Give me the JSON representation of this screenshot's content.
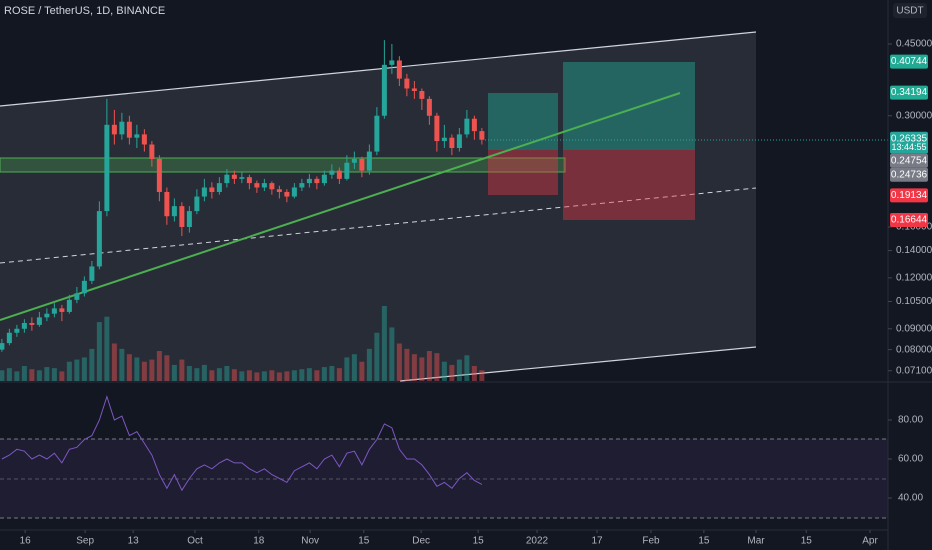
{
  "chart_data": {
    "type": "candlestick",
    "title": "ROSE / TetherUS, 1D, BINANCE",
    "currency": "USDT",
    "log_scale": true,
    "ylim": [
      0.067,
      0.577
    ],
    "yticks": [
      {
        "value": 0.45,
        "label": "0.45000"
      },
      {
        "value": 0.3,
        "label": "0.30000"
      },
      {
        "value": 0.16,
        "label": "0.16000"
      },
      {
        "value": 0.14,
        "label": "0.14000"
      },
      {
        "value": 0.12,
        "label": "0.12000"
      },
      {
        "value": 0.105,
        "label": "0.10500"
      },
      {
        "value": 0.09,
        "label": "0.09000"
      },
      {
        "value": 0.08,
        "label": "0.08000"
      },
      {
        "value": 0.071,
        "label": "0.07100"
      }
    ],
    "price_tags": [
      {
        "value": 0.40744,
        "color": "#22ab94"
      },
      {
        "value": 0.34194,
        "color": "#22ab94"
      },
      {
        "value": 0.26335,
        "color": "#26a69a"
      },
      {
        "value": 0.24754,
        "color": "#787b86"
      },
      {
        "value": 0.24736,
        "color": "#787b86"
      },
      {
        "value": 0.19134,
        "color": "#f23645"
      },
      {
        "value": 0.16644,
        "color": "#f23645"
      }
    ],
    "countdown": "13:44:55",
    "xlim": [
      0,
      236.8
    ],
    "xticks": [
      {
        "value": 6.7,
        "label": "16"
      },
      {
        "value": 22.7,
        "label": "Sep"
      },
      {
        "value": 35.5,
        "label": "13"
      },
      {
        "value": 52,
        "label": "Oct"
      },
      {
        "value": 69,
        "label": "18"
      },
      {
        "value": 82.7,
        "label": "Nov"
      },
      {
        "value": 97,
        "label": "15"
      },
      {
        "value": 112.3,
        "label": "Dec"
      },
      {
        "value": 127.5,
        "label": "15"
      },
      {
        "value": 143.2,
        "label": "2022"
      },
      {
        "value": 159.2,
        "label": "17"
      },
      {
        "value": 173.6,
        "label": "Feb"
      },
      {
        "value": 187.7,
        "label": "15"
      },
      {
        "value": 201.6,
        "label": "Mar"
      },
      {
        "value": 215,
        "label": "15"
      },
      {
        "value": 232,
        "label": "Apr"
      }
    ],
    "x": [
      0.5,
      2.5,
      4.5,
      6.5,
      8.5,
      10.5,
      12.5,
      14.5,
      16.5,
      18.5,
      20.5,
      22.5,
      24.5,
      26.5,
      28.5,
      30.5,
      32.5,
      34.5,
      36.5,
      38.5,
      40.5,
      42.5,
      44.5,
      46.5,
      48.5,
      50.5,
      52.5,
      54.5,
      56.5,
      58.5,
      60.5,
      62.5,
      64.5,
      66.5,
      68.5,
      70.5,
      72.5,
      74.5,
      76.5,
      78.5,
      80.5,
      82.5,
      84.5,
      86.5,
      88.5,
      90.5,
      92.5,
      94.5,
      96.5,
      98.5,
      100.5,
      102.5,
      104.5,
      106.5,
      108.5,
      110.5,
      112.5,
      114.5,
      116.5,
      118.5,
      120.5,
      122.5,
      124.5,
      126.5,
      128.5
    ],
    "candles": [
      [
        0.08,
        0.085,
        0.079,
        0.083
      ],
      [
        0.083,
        0.09,
        0.082,
        0.088
      ],
      [
        0.088,
        0.092,
        0.086,
        0.09
      ],
      [
        0.09,
        0.095,
        0.088,
        0.093
      ],
      [
        0.093,
        0.096,
        0.089,
        0.092
      ],
      [
        0.092,
        0.099,
        0.091,
        0.096
      ],
      [
        0.096,
        0.101,
        0.094,
        0.098
      ],
      [
        0.098,
        0.104,
        0.096,
        0.101
      ],
      [
        0.101,
        0.103,
        0.094,
        0.099
      ],
      [
        0.099,
        0.109,
        0.098,
        0.106
      ],
      [
        0.106,
        0.114,
        0.104,
        0.11
      ],
      [
        0.11,
        0.121,
        0.108,
        0.118
      ],
      [
        0.118,
        0.132,
        0.116,
        0.128
      ],
      [
        0.128,
        0.185,
        0.126,
        0.175
      ],
      [
        0.175,
        0.33,
        0.17,
        0.285
      ],
      [
        0.285,
        0.31,
        0.255,
        0.27
      ],
      [
        0.27,
        0.305,
        0.262,
        0.29
      ],
      [
        0.29,
        0.3,
        0.255,
        0.265
      ],
      [
        0.265,
        0.285,
        0.25,
        0.27
      ],
      [
        0.27,
        0.278,
        0.245,
        0.255
      ],
      [
        0.255,
        0.26,
        0.225,
        0.235
      ],
      [
        0.235,
        0.24,
        0.185,
        0.195
      ],
      [
        0.195,
        0.2,
        0.162,
        0.17
      ],
      [
        0.17,
        0.188,
        0.165,
        0.18
      ],
      [
        0.18,
        0.184,
        0.152,
        0.16
      ],
      [
        0.16,
        0.18,
        0.155,
        0.175
      ],
      [
        0.175,
        0.198,
        0.172,
        0.19
      ],
      [
        0.19,
        0.21,
        0.185,
        0.2
      ],
      [
        0.2,
        0.206,
        0.188,
        0.195
      ],
      [
        0.195,
        0.212,
        0.192,
        0.205
      ],
      [
        0.205,
        0.222,
        0.2,
        0.215
      ],
      [
        0.215,
        0.22,
        0.204,
        0.21
      ],
      [
        0.21,
        0.218,
        0.205,
        0.212
      ],
      [
        0.212,
        0.215,
        0.198,
        0.205
      ],
      [
        0.205,
        0.208,
        0.194,
        0.2
      ],
      [
        0.2,
        0.21,
        0.196,
        0.205
      ],
      [
        0.205,
        0.207,
        0.192,
        0.198
      ],
      [
        0.198,
        0.202,
        0.188,
        0.195
      ],
      [
        0.195,
        0.198,
        0.184,
        0.19
      ],
      [
        0.19,
        0.205,
        0.188,
        0.2
      ],
      [
        0.2,
        0.21,
        0.196,
        0.205
      ],
      [
        0.205,
        0.216,
        0.2,
        0.21
      ],
      [
        0.21,
        0.213,
        0.198,
        0.205
      ],
      [
        0.205,
        0.22,
        0.202,
        0.215
      ],
      [
        0.215,
        0.228,
        0.21,
        0.22
      ],
      [
        0.22,
        0.224,
        0.204,
        0.21
      ],
      [
        0.21,
        0.24,
        0.208,
        0.23
      ],
      [
        0.23,
        0.245,
        0.222,
        0.235
      ],
      [
        0.235,
        0.238,
        0.212,
        0.22
      ],
      [
        0.22,
        0.255,
        0.215,
        0.245
      ],
      [
        0.245,
        0.315,
        0.24,
        0.3
      ],
      [
        0.3,
        0.46,
        0.295,
        0.4
      ],
      [
        0.4,
        0.45,
        0.38,
        0.41
      ],
      [
        0.41,
        0.42,
        0.355,
        0.37
      ],
      [
        0.37,
        0.38,
        0.335,
        0.35
      ],
      [
        0.35,
        0.365,
        0.33,
        0.345
      ],
      [
        0.345,
        0.35,
        0.31,
        0.33
      ],
      [
        0.33,
        0.335,
        0.285,
        0.3
      ],
      [
        0.3,
        0.305,
        0.245,
        0.26
      ],
      [
        0.26,
        0.285,
        0.25,
        0.265
      ],
      [
        0.265,
        0.27,
        0.24,
        0.25
      ],
      [
        0.25,
        0.28,
        0.245,
        0.27
      ],
      [
        0.27,
        0.31,
        0.265,
        0.295
      ],
      [
        0.295,
        0.3,
        0.262,
        0.275
      ],
      [
        0.275,
        0.28,
        0.255,
        0.262
      ]
    ],
    "up_color": "#26a69a",
    "down_color": "#ef5350",
    "volumes": [
      10,
      12,
      9,
      14,
      11,
      10,
      13,
      12,
      9,
      18,
      20,
      22,
      30,
      55,
      60,
      35,
      30,
      25,
      22,
      18,
      20,
      28,
      24,
      15,
      20,
      14,
      12,
      15,
      10,
      12,
      14,
      11,
      9,
      10,
      8,
      9,
      10,
      8,
      9,
      10,
      11,
      12,
      10,
      13,
      14,
      12,
      22,
      25,
      18,
      30,
      45,
      70,
      50,
      35,
      30,
      25,
      22,
      28,
      26,
      18,
      15,
      20,
      24,
      14,
      10
    ],
    "rsi": [
      60,
      62,
      65,
      64,
      60,
      62,
      60,
      63,
      58,
      65,
      66,
      70,
      72,
      80,
      92,
      80,
      82,
      72,
      74,
      68,
      62,
      52,
      45,
      52,
      44,
      50,
      55,
      57,
      55,
      58,
      60,
      58,
      58,
      55,
      53,
      55,
      52,
      50,
      48,
      54,
      56,
      58,
      55,
      60,
      62,
      56,
      63,
      64,
      57,
      65,
      70,
      78,
      76,
      65,
      60,
      60,
      57,
      52,
      46,
      48,
      45,
      50,
      53,
      49,
      47
    ],
    "rsi_color": "#7e57c2",
    "rsi_ylim": [
      23.6,
      99.5
    ],
    "rsi_yticks": [
      {
        "value": 80,
        "label": "80.00"
      },
      {
        "value": 60,
        "label": "60.00"
      },
      {
        "value": 40,
        "label": "40.00"
      }
    ]
  }
}
